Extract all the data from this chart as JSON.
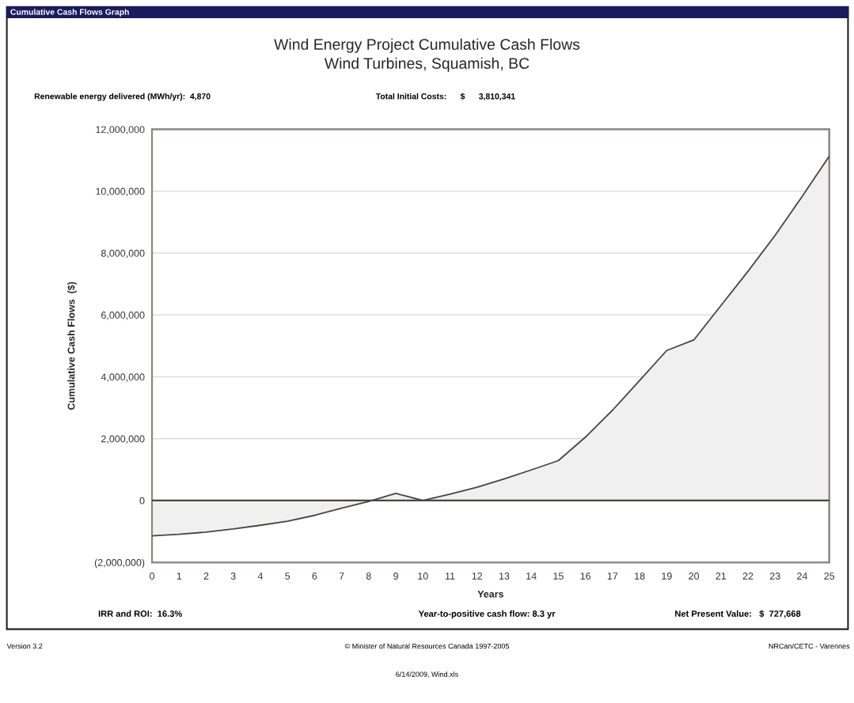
{
  "chart_data": {
    "type": "area",
    "title": "Wind Energy Project Cumulative Cash Flows",
    "subtitle": "Wind Turbines, Squamish, BC",
    "xlabel": "Years",
    "ylabel": "Cumulative Cash Flows  ($)",
    "x": [
      0,
      1,
      2,
      3,
      4,
      5,
      6,
      7,
      8,
      9,
      10,
      11,
      12,
      13,
      14,
      15,
      16,
      17,
      18,
      19,
      20,
      21,
      22,
      23,
      24,
      25
    ],
    "series": [
      {
        "color": "#f0f0f0",
        "values": [
          -1140000,
          -1090000,
          -1020000,
          -920000,
          -800000,
          -670000,
          -480000,
          -250000,
          -30000,
          230000,
          0,
          210000,
          430000,
          700000,
          990000,
          1290000,
          2050000,
          2920000,
          3880000,
          4850000,
          5190000,
          6300000,
          7410000,
          8570000,
          9830000,
          11130000
        ]
      }
    ],
    "xlim": [
      0,
      25
    ],
    "xticks": [
      0,
      1,
      2,
      3,
      4,
      5,
      6,
      7,
      8,
      9,
      10,
      11,
      12,
      13,
      14,
      15,
      16,
      17,
      18,
      19,
      20,
      21,
      22,
      23,
      24,
      25
    ],
    "ylim": [
      -2000000,
      12000000
    ],
    "yticks": [
      {
        "value": -2000000,
        "label": "(2,000,000)"
      },
      {
        "value": 0,
        "label": "0"
      },
      {
        "value": 2000000,
        "label": "2,000,000"
      },
      {
        "value": 4000000,
        "label": "4,000,000"
      },
      {
        "value": 6000000,
        "label": "6,000,000"
      },
      {
        "value": 8000000,
        "label": "8,000,000"
      },
      {
        "value": 10000000,
        "label": "10,000,000"
      },
      {
        "value": 12000000,
        "label": "12,000,000"
      }
    ],
    "grid": "y",
    "ref_lines": [
      {
        "axis": "y",
        "value": 0,
        "color": "#4a4540"
      }
    ],
    "annotations": [
      "Cumulative Cash Flows Graph",
      "Renewable energy delivered (MWh/yr):  4,870",
      "Total Initial Costs:      $      3,810,341",
      "IRR and ROI:  16.3%",
      "Year-to-positive cash flow: 8.3 yr",
      "Net Present Value:   $  727,668",
      "Version 3.2",
      "© Minister of Natural Resources Canada 1997-2005",
      "NRCan/CETC - Varennes",
      "6/14/2009, Wind.xls"
    ]
  }
}
